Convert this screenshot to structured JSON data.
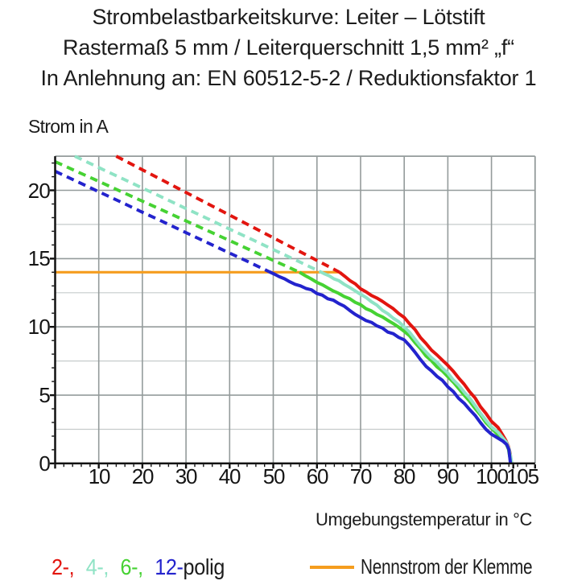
{
  "title": {
    "line1": "Strombelastbarkeitskurve: Leiter – Lötstift",
    "line2": "Rastermaß 5 mm / Leiterquerschnitt 1,5 mm² „f“",
    "line3": "In Anlehnung an: EN 60512-5-2 / Reduktionsfaktor 1"
  },
  "y_axis": {
    "label": "Strom in A",
    "tick_labels": [
      "0",
      "5",
      "10",
      "15",
      "20"
    ]
  },
  "x_axis": {
    "label": "Umgebungstemperatur in °C",
    "tick_labels": [
      "10",
      "20",
      "30",
      "40",
      "50",
      "60",
      "70",
      "80",
      "90",
      "100",
      "105"
    ]
  },
  "legend": {
    "pole_items": [
      {
        "label": "2-,",
        "series": "2-polig",
        "color": "#e2150f"
      },
      {
        "label": "4-,",
        "series": "4-polig",
        "color": "#8fe3c5"
      },
      {
        "label": "6-,",
        "series": "6-polig",
        "color": "#46d233"
      },
      {
        "label": "12-",
        "series": "12-polig",
        "color": "#2323cd"
      }
    ],
    "pole_suffix": "polig",
    "rated_label": "Nennstrom der Klemme",
    "rated_color": "#f59d1e"
  },
  "colors": {
    "text": "#1c1c1c",
    "axis": "#111111",
    "grid_major": "#949b9b",
    "grid_minor": "#c6cbcb",
    "background": "#ffffff"
  },
  "chart_data": {
    "type": "line",
    "title": "Strombelastbarkeitskurve: Leiter – Lötstift",
    "xlabel": "Umgebungstemperatur in °C",
    "ylabel": "Strom in A",
    "xlim": [
      0,
      110
    ],
    "ylim": [
      0,
      22.5
    ],
    "x_major_ticks": [
      0,
      10,
      20,
      30,
      40,
      50,
      60,
      70,
      80,
      90,
      100,
      105,
      110
    ],
    "x_labeled_ticks": [
      10,
      20,
      30,
      40,
      50,
      60,
      70,
      80,
      90,
      100,
      105
    ],
    "x_minor_step": 2,
    "y_major_ticks": [
      0,
      5,
      10,
      15,
      20
    ],
    "y_labeled_ticks": [
      0,
      5,
      10,
      15,
      20
    ],
    "y_minor_step": 1,
    "y_minor_grid_step": 2.5,
    "grid": "on",
    "legend_position": "bottom",
    "rated_current": {
      "label": "Nennstrom der Klemme",
      "value": 14,
      "x_start": 0,
      "x_end": 65.2,
      "color": "#f59d1e"
    },
    "series": [
      {
        "name": "2-polig",
        "color": "#e2150f",
        "dashed_points": [
          [
            14.0,
            22.5
          ],
          [
            19.12,
            21.65
          ],
          [
            24.24,
            20.8
          ],
          [
            29.36,
            19.95
          ],
          [
            34.48,
            19.1
          ],
          [
            39.6,
            18.25
          ],
          [
            44.72,
            17.4
          ],
          [
            49.84,
            16.55
          ],
          [
            54.96,
            15.7
          ],
          [
            60.08,
            14.85
          ],
          [
            65.2,
            14.0
          ]
        ],
        "solid_points": [
          [
            65.2,
            14.0
          ],
          [
            66.4,
            13.7
          ],
          [
            67.6,
            13.38
          ],
          [
            68.8,
            13.15
          ],
          [
            70.0,
            12.79
          ],
          [
            71.25,
            12.57
          ],
          [
            72.5,
            12.3
          ],
          [
            73.75,
            12.11
          ],
          [
            75.0,
            11.87
          ],
          [
            76.25,
            11.6
          ],
          [
            77.5,
            11.33
          ],
          [
            78.75,
            10.98
          ],
          [
            80.0,
            10.69
          ],
          [
            81.25,
            10.22
          ],
          [
            82.5,
            9.8
          ],
          [
            83.75,
            9.21
          ],
          [
            85.0,
            8.78
          ],
          [
            86.25,
            8.3
          ],
          [
            87.5,
            7.95
          ],
          [
            88.75,
            7.56
          ],
          [
            90.0,
            7.18
          ],
          [
            91.25,
            6.75
          ],
          [
            92.5,
            6.25
          ],
          [
            93.75,
            5.8
          ],
          [
            95.0,
            5.25
          ],
          [
            96.25,
            4.79
          ],
          [
            97.5,
            4.15
          ],
          [
            98.75,
            3.66
          ],
          [
            100.0,
            3.08
          ],
          [
            101.5,
            2.64
          ],
          [
            102.5,
            2.12
          ],
          [
            103.3,
            1.68
          ],
          [
            103.9,
            1.23
          ],
          [
            104.3,
            0.72
          ],
          [
            104.5,
            0.0
          ]
        ]
      },
      {
        "name": "6-polig",
        "color": "#46d233",
        "dashed_points": [
          [
            0.0,
            22.1
          ],
          [
            5.09,
            21.36
          ],
          [
            10.18,
            20.63
          ],
          [
            15.27,
            19.89
          ],
          [
            20.36,
            19.15
          ],
          [
            25.45,
            18.42
          ],
          [
            30.55,
            17.68
          ],
          [
            35.64,
            16.95
          ],
          [
            40.73,
            16.21
          ],
          [
            45.82,
            15.47
          ],
          [
            50.91,
            14.74
          ],
          [
            56.0,
            14.0
          ]
        ],
        "solid_points": [
          [
            56.0,
            14.0
          ],
          [
            57.33,
            13.75
          ],
          [
            58.67,
            13.52
          ],
          [
            60.0,
            13.26
          ],
          [
            61.25,
            13.08
          ],
          [
            62.5,
            12.85
          ],
          [
            63.75,
            12.63
          ],
          [
            65.0,
            12.45
          ],
          [
            66.25,
            12.22
          ],
          [
            67.5,
            12.07
          ],
          [
            68.75,
            11.8
          ],
          [
            70.0,
            11.63
          ],
          [
            71.25,
            11.33
          ],
          [
            72.5,
            11.17
          ],
          [
            73.75,
            10.91
          ],
          [
            75.0,
            10.73
          ],
          [
            76.25,
            10.48
          ],
          [
            77.5,
            10.24
          ],
          [
            78.75,
            9.98
          ],
          [
            80.0,
            9.67
          ],
          [
            81.25,
            9.34
          ],
          [
            82.5,
            8.84
          ],
          [
            83.75,
            8.4
          ],
          [
            85.0,
            7.87
          ],
          [
            86.25,
            7.52
          ],
          [
            87.5,
            7.08
          ],
          [
            88.75,
            6.77
          ],
          [
            90.0,
            6.35
          ],
          [
            91.25,
            5.95
          ],
          [
            92.5,
            5.48
          ],
          [
            93.75,
            5.0
          ],
          [
            95.0,
            4.55
          ],
          [
            96.25,
            4.02
          ],
          [
            97.5,
            3.55
          ],
          [
            98.75,
            2.98
          ],
          [
            100.0,
            2.59
          ],
          [
            101.5,
            2.1
          ],
          [
            102.5,
            1.84
          ],
          [
            103.3,
            1.48
          ],
          [
            103.9,
            1.05
          ],
          [
            104.45,
            0.0
          ]
        ]
      },
      {
        "name": "4-polig",
        "color": "#8fe3c5",
        "dashed_points": [
          [
            4.5,
            22.5
          ],
          [
            9.59,
            21.73
          ],
          [
            14.68,
            20.97
          ],
          [
            19.77,
            20.2
          ],
          [
            24.86,
            19.44
          ],
          [
            29.95,
            18.67
          ],
          [
            35.05,
            17.91
          ],
          [
            40.14,
            17.14
          ],
          [
            45.23,
            16.38
          ],
          [
            50.32,
            15.61
          ],
          [
            55.41,
            14.85
          ],
          [
            60.5,
            14.08
          ]
        ],
        "solid_points": [
          [
            60.5,
            14.08
          ],
          [
            61.62,
            13.9
          ],
          [
            62.75,
            13.75
          ],
          [
            63.88,
            13.52
          ],
          [
            65.0,
            13.39
          ],
          [
            66.25,
            13.12
          ],
          [
            67.5,
            12.89
          ],
          [
            68.75,
            12.64
          ],
          [
            70.0,
            12.38
          ],
          [
            71.25,
            12.16
          ],
          [
            72.5,
            11.84
          ],
          [
            73.75,
            11.59
          ],
          [
            75.0,
            11.21
          ],
          [
            76.25,
            10.97
          ],
          [
            77.5,
            10.63
          ],
          [
            78.75,
            10.38
          ],
          [
            80.0,
            10.0
          ],
          [
            81.25,
            9.6
          ],
          [
            82.5,
            9.09
          ],
          [
            83.75,
            8.58
          ],
          [
            85.0,
            8.16
          ],
          [
            86.25,
            7.74
          ],
          [
            87.5,
            7.42
          ],
          [
            88.75,
            6.98
          ],
          [
            90.0,
            6.62
          ],
          [
            91.25,
            6.11
          ],
          [
            92.5,
            5.72
          ],
          [
            93.75,
            5.22
          ],
          [
            95.0,
            4.78
          ],
          [
            96.25,
            4.24
          ],
          [
            97.5,
            3.67
          ],
          [
            98.75,
            3.15
          ],
          [
            100.0,
            2.67
          ],
          [
            101.5,
            2.3
          ],
          [
            102.5,
            1.91
          ],
          [
            103.4,
            1.56
          ],
          [
            104.0,
            1.08
          ],
          [
            104.45,
            0.42
          ],
          [
            104.65,
            0.0
          ]
        ]
      },
      {
        "name": "12-polig",
        "color": "#2323cd",
        "dashed_points": [
          [
            0.0,
            21.4
          ],
          [
            4.9,
            20.66
          ],
          [
            9.8,
            19.93
          ],
          [
            14.7,
            19.2
          ],
          [
            19.6,
            18.46
          ],
          [
            24.5,
            17.73
          ],
          [
            29.4,
            16.99
          ],
          [
            34.3,
            16.26
          ],
          [
            39.2,
            15.52
          ],
          [
            44.1,
            14.79
          ],
          [
            49.0,
            14.05
          ]
        ],
        "solid_points": [
          [
            49.0,
            14.05
          ],
          [
            50.2,
            13.87
          ],
          [
            51.4,
            13.67
          ],
          [
            52.6,
            13.52
          ],
          [
            53.8,
            13.3
          ],
          [
            55.0,
            13.12
          ],
          [
            56.25,
            13.0
          ],
          [
            57.5,
            12.81
          ],
          [
            58.75,
            12.71
          ],
          [
            60.0,
            12.44
          ],
          [
            61.25,
            12.32
          ],
          [
            62.5,
            12.06
          ],
          [
            63.75,
            11.96
          ],
          [
            65.0,
            11.71
          ],
          [
            66.25,
            11.52
          ],
          [
            67.5,
            11.21
          ],
          [
            68.75,
            10.92
          ],
          [
            70.0,
            10.69
          ],
          [
            71.25,
            10.46
          ],
          [
            72.5,
            10.33
          ],
          [
            73.75,
            10.07
          ],
          [
            75.0,
            9.92
          ],
          [
            76.25,
            9.62
          ],
          [
            77.5,
            9.5
          ],
          [
            78.75,
            9.23
          ],
          [
            80.0,
            9.05
          ],
          [
            81.25,
            8.63
          ],
          [
            82.5,
            8.14
          ],
          [
            83.75,
            7.6
          ],
          [
            85.0,
            7.11
          ],
          [
            86.25,
            6.78
          ],
          [
            87.5,
            6.38
          ],
          [
            88.75,
            6.09
          ],
          [
            90.0,
            5.61
          ],
          [
            91.25,
            5.26
          ],
          [
            92.5,
            4.76
          ],
          [
            93.75,
            4.41
          ],
          [
            95.0,
            3.94
          ],
          [
            96.25,
            3.52
          ],
          [
            97.5,
            2.98
          ],
          [
            98.75,
            2.49
          ],
          [
            100.0,
            2.14
          ],
          [
            101.5,
            1.85
          ],
          [
            102.6,
            1.64
          ],
          [
            103.5,
            1.38
          ],
          [
            104.0,
            1.0
          ],
          [
            104.35,
            0.0
          ]
        ]
      }
    ]
  }
}
